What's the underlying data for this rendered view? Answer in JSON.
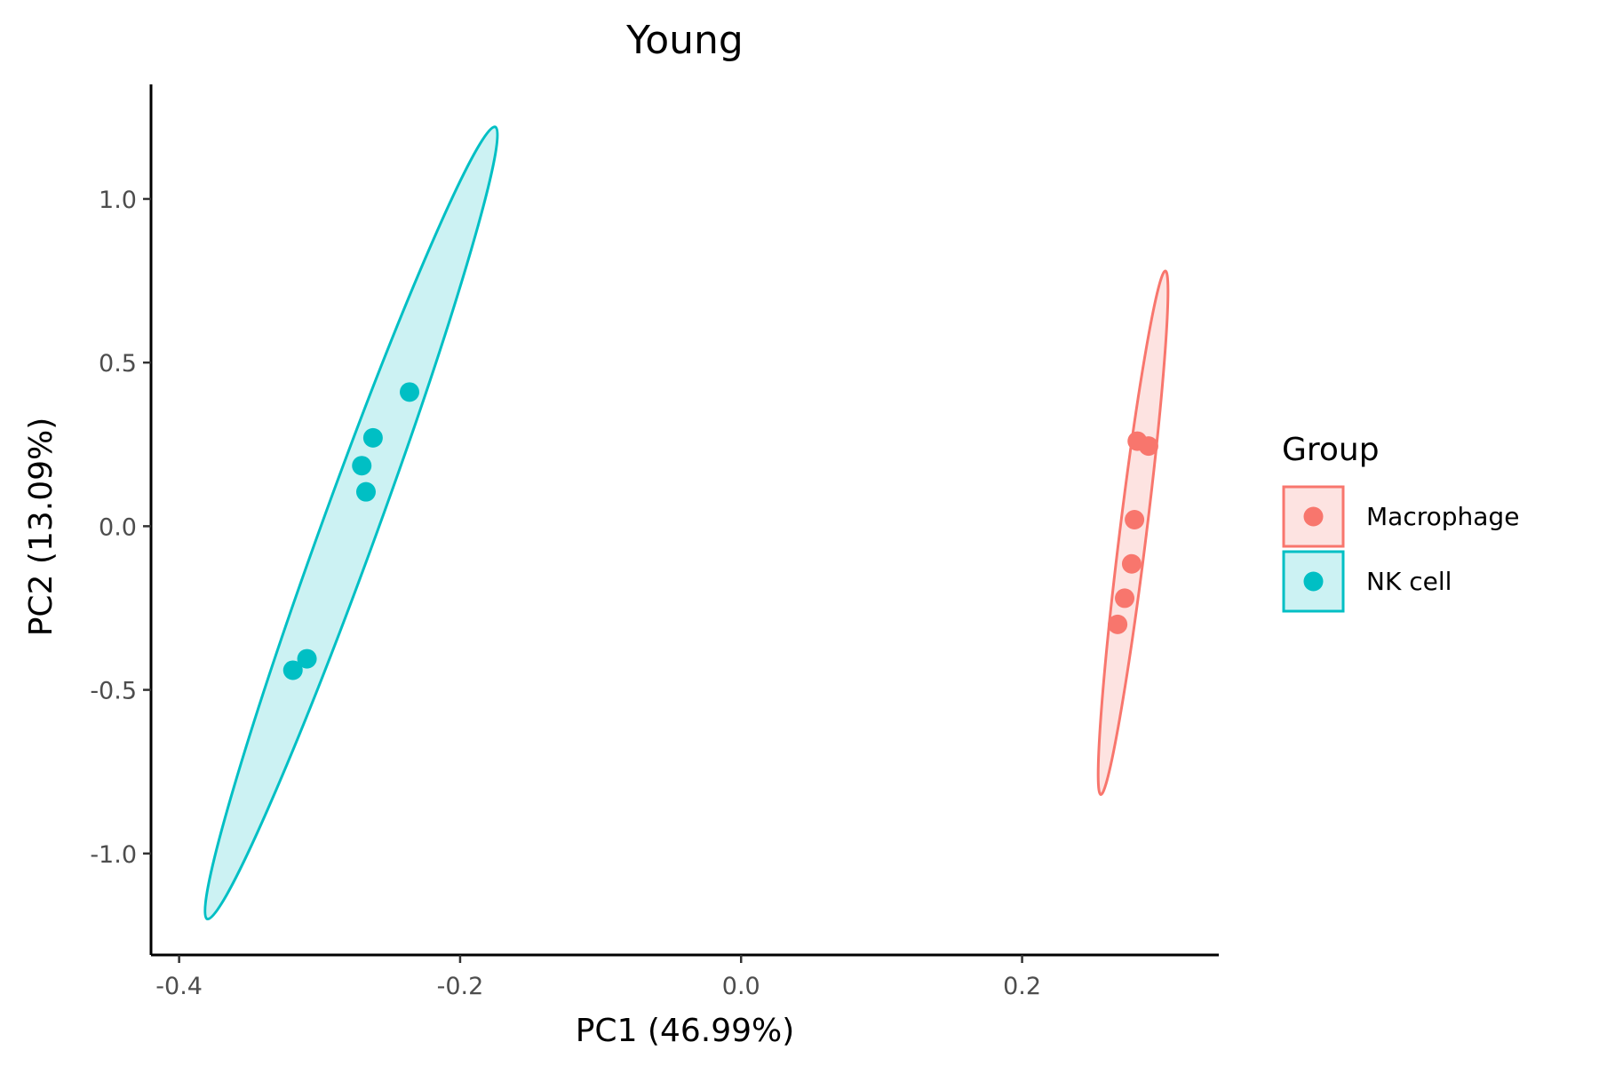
{
  "chart_data": {
    "type": "scatter",
    "title": "Young",
    "xlabel": "PC1 (46.99%)",
    "ylabel": "PC2 (13.09%)",
    "xlim": [
      -0.42,
      0.34
    ],
    "ylim": [
      -1.31,
      1.35
    ],
    "xticks": [
      -0.4,
      -0.2,
      0.0,
      0.2
    ],
    "xtick_labels": [
      "-0.4",
      "-0.2",
      "0.0",
      "0.2"
    ],
    "yticks": [
      -1.0,
      -0.5,
      0.0,
      0.5,
      1.0
    ],
    "ytick_labels": [
      "-1.0",
      "-0.5",
      "0.0",
      "0.5",
      "1.0"
    ],
    "grid": false,
    "legend": {
      "title": "Group",
      "position": "right"
    },
    "series": [
      {
        "name": "Macrophage",
        "color": "#F8766D",
        "fill": "#FDE3E1",
        "points": [
          [
            0.282,
            0.26
          ],
          [
            0.29,
            0.245
          ],
          [
            0.28,
            0.02
          ],
          [
            0.278,
            -0.115
          ],
          [
            0.273,
            -0.22
          ],
          [
            0.268,
            -0.3
          ]
        ],
        "ellipse": {
          "center": [
            0.279,
            -0.02
          ],
          "extremes": [
            [
              0.302,
              0.78
            ],
            [
              0.256,
              -0.82
            ]
          ],
          "minor": 0.0095
        }
      },
      {
        "name": "NK cell",
        "color": "#00BFC4",
        "fill": "#CCF2F3",
        "points": [
          [
            -0.236,
            0.41
          ],
          [
            -0.262,
            0.27
          ],
          [
            -0.27,
            0.185
          ],
          [
            -0.267,
            0.105
          ],
          [
            -0.309,
            -0.405
          ],
          [
            -0.319,
            -0.44
          ]
        ],
        "ellipse": {
          "center": [
            -0.2775,
            0.01
          ],
          "extremes": [
            [
              -0.175,
              1.22
            ],
            [
              -0.38,
              -1.2
            ]
          ],
          "minor": 0.0195
        }
      }
    ]
  }
}
